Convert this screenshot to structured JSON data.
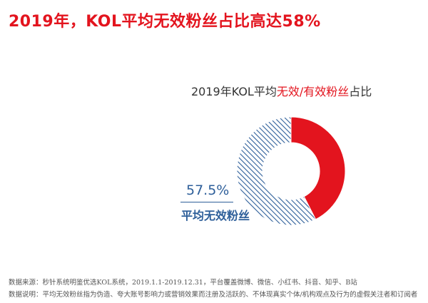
{
  "title": "2019年，KOL平均无效粉丝占比高达58%",
  "chart_title": {
    "prefix": "2019年KOL平均",
    "highlight": "无效/有效粉丝",
    "suffix": "占比"
  },
  "colors": {
    "accent_red": "#e3141e",
    "invalid_blue": "#2e5f9a",
    "text_dark": "#333333"
  },
  "chart_data": {
    "type": "pie",
    "title": "2019年KOL平均无效/有效粉丝占比",
    "donut": true,
    "slices": [
      {
        "name": "平均无效粉丝",
        "value": 57.5,
        "label": "57.5%",
        "color": "#2e5f9a",
        "pattern": "diagonal-hatch"
      },
      {
        "name": "有效粉丝",
        "value": 42.5,
        "color": "#e3141e",
        "pattern": "solid"
      }
    ]
  },
  "annotation": {
    "value_label": "57.5%",
    "series_label": "平均无效粉丝"
  },
  "footnotes": {
    "source": "数据来源：秒针系统明鉴优选KOL系统，2019.1.1-2019.12.31，平台覆盖微博、微信、小红书、抖音、知乎、B站",
    "note": "数据说明：平均无效粉丝指为伪造、夸大账号影响力或营销效果而注册及活跃的、不体现真实个体/机构观点及行为的虚假关注者和订阅者"
  }
}
